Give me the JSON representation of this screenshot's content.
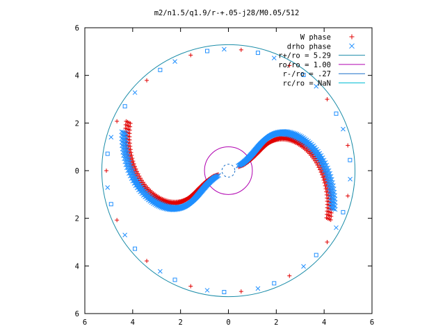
{
  "chart_data": {
    "type": "scatter",
    "title": "m2/n1.5/q1.9/r-+.05-j28/M0.05/512",
    "xlim": [
      -6,
      6
    ],
    "ylim": [
      -6,
      6
    ],
    "x_tick_labels": [
      "6",
      "4",
      "2",
      "0",
      "2",
      "4",
      "6"
    ],
    "y_tick_labels": [
      "6",
      "4",
      "2",
      "0",
      "2",
      "4",
      "6"
    ],
    "x_tick_values": [
      -6,
      -4,
      -2,
      0,
      2,
      4,
      6
    ],
    "y_tick_values": [
      6,
      4,
      2,
      0,
      -2,
      -4,
      -6
    ],
    "legend_position": "top-right",
    "grid": false,
    "series": [
      {
        "name": "W phase",
        "marker": "plus",
        "color": "#e00000",
        "arms": [
          {
            "inner_r": 0.55,
            "inner_t": 0.35,
            "outer_r": 4.65,
            "outer_t": -0.45,
            "width": 0.2
          },
          {
            "inner_r": 0.55,
            "inner_t": 3.49,
            "outer_r": 4.65,
            "outer_t": 2.69,
            "width": 0.2
          }
        ]
      },
      {
        "name": "drho phase",
        "marker": "cross",
        "color": "#1f8fff",
        "arms": [
          {
            "inner_r": 0.55,
            "inner_t": 0.45,
            "outer_r": 4.65,
            "outer_t": -0.35,
            "width": 0.2
          },
          {
            "inner_r": 0.55,
            "inner_t": 3.59,
            "outer_r": 4.65,
            "outer_t": 2.79,
            "width": 0.2
          }
        ]
      }
    ],
    "outer_points": {
      "radius": 5.1,
      "angles_deg": [
        5,
        12,
        20,
        28,
        36,
        44,
        52,
        60,
        68,
        76,
        84,
        92,
        100,
        108,
        116,
        124,
        132,
        140,
        148,
        156,
        164,
        172,
        180,
        188,
        196,
        204,
        212,
        220,
        228,
        236,
        244,
        252,
        260,
        268,
        276,
        284,
        292,
        300,
        308,
        316,
        324,
        332,
        340,
        348,
        356
      ]
    },
    "circles": [
      {
        "name": "r+/ro = 5.29",
        "r": 5.29,
        "color": "#1a8ca8",
        "style": "solid"
      },
      {
        "name": "ro/ro = 1.00",
        "r": 1.0,
        "color": "#b000b0",
        "style": "solid"
      },
      {
        "name": "r-/ro = .27",
        "r": 0.27,
        "color": "#1a6fc8",
        "style": "dashed"
      },
      {
        "name": "rc/ro = NaN",
        "r": null,
        "color": "#00bcd4",
        "style": "solid"
      }
    ]
  }
}
